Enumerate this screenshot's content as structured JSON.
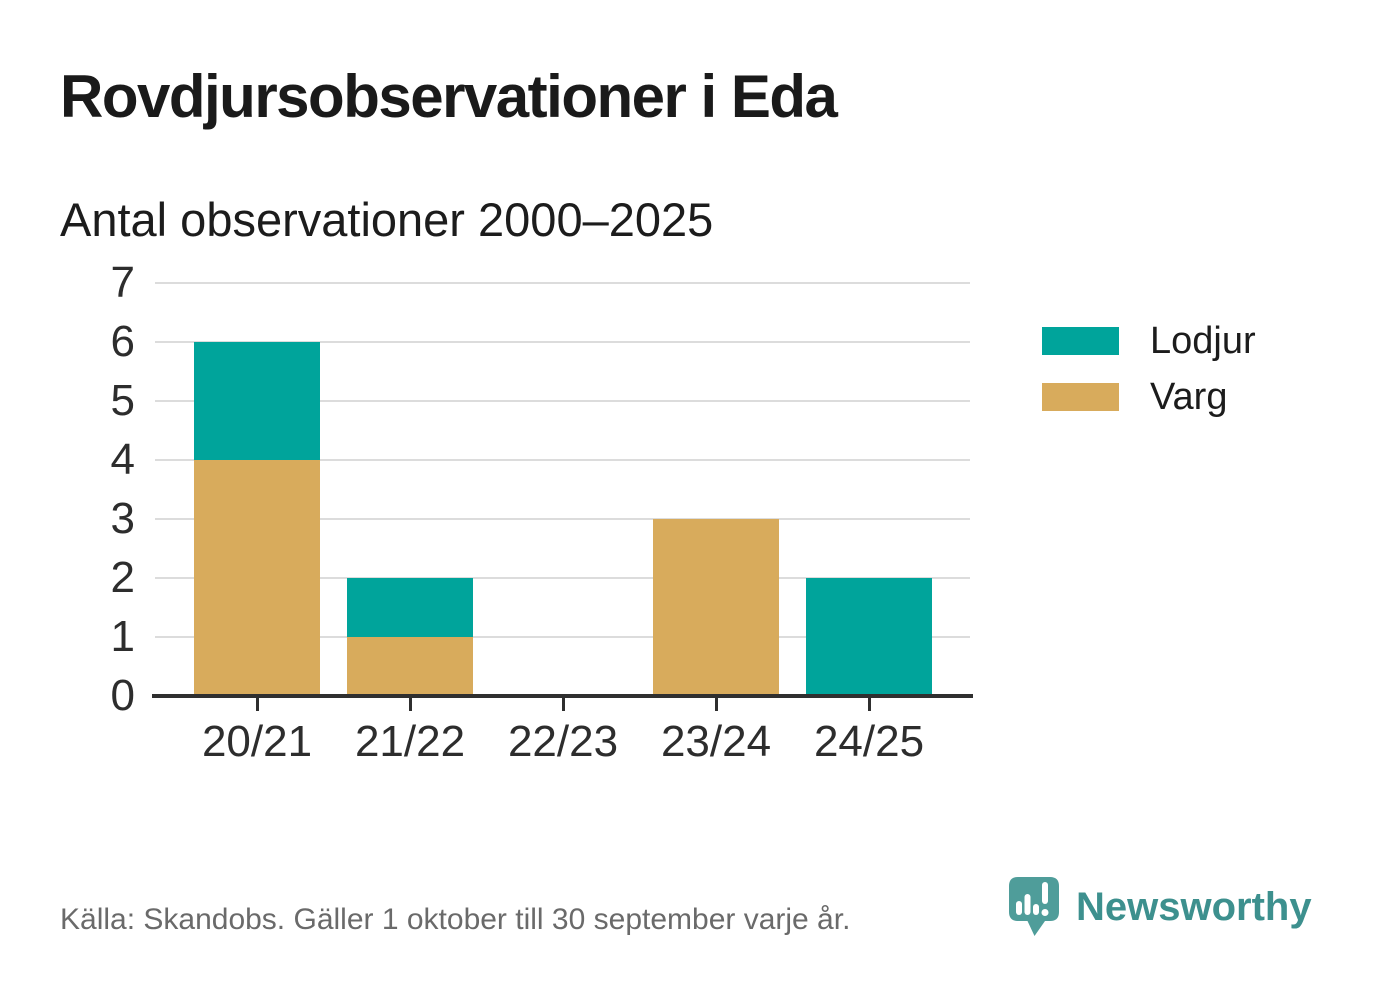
{
  "title": "Rovdjursobservationer i Eda",
  "subtitle": "Antal observationer 2000–2025",
  "footer": {
    "source": "Källa: Skandobs. Gäller 1 oktober till 30 september varje år."
  },
  "branding": {
    "wordmark": "Newsworthy"
  },
  "colors": {
    "lodjur": "#00A49B",
    "varg": "#D8AB5C",
    "gridline": "#DCDCDC",
    "axis": "#2F2F2F",
    "tick_label": "#2D2D2D",
    "title_text": "#1A1A1A",
    "footer_text": "#6A6A6A",
    "brand_bubble": "#4F9D9A",
    "brand_text": "#3D908E"
  },
  "chart_data": {
    "type": "bar",
    "stacked": true,
    "title": "Rovdjursobservationer i Eda",
    "subtitle": "Antal observationer 2000–2025",
    "categories": [
      "20/21",
      "21/22",
      "22/23",
      "23/24",
      "24/25"
    ],
    "series": [
      {
        "name": "Varg",
        "color": "#D8AB5C",
        "values": [
          4,
          1,
          0,
          3,
          0
        ]
      },
      {
        "name": "Lodjur",
        "color": "#00A49B",
        "values": [
          2,
          1,
          0,
          0,
          2
        ]
      }
    ],
    "legend": [
      {
        "label": "Lodjur",
        "color": "#00A49B"
      },
      {
        "label": "Varg",
        "color": "#D8AB5C"
      }
    ],
    "legend_position": "right",
    "xlabel": "",
    "ylabel": "",
    "ylim": [
      0,
      7
    ],
    "yticks": [
      0,
      1,
      2,
      3,
      4,
      5,
      6,
      7
    ],
    "grid": true
  }
}
